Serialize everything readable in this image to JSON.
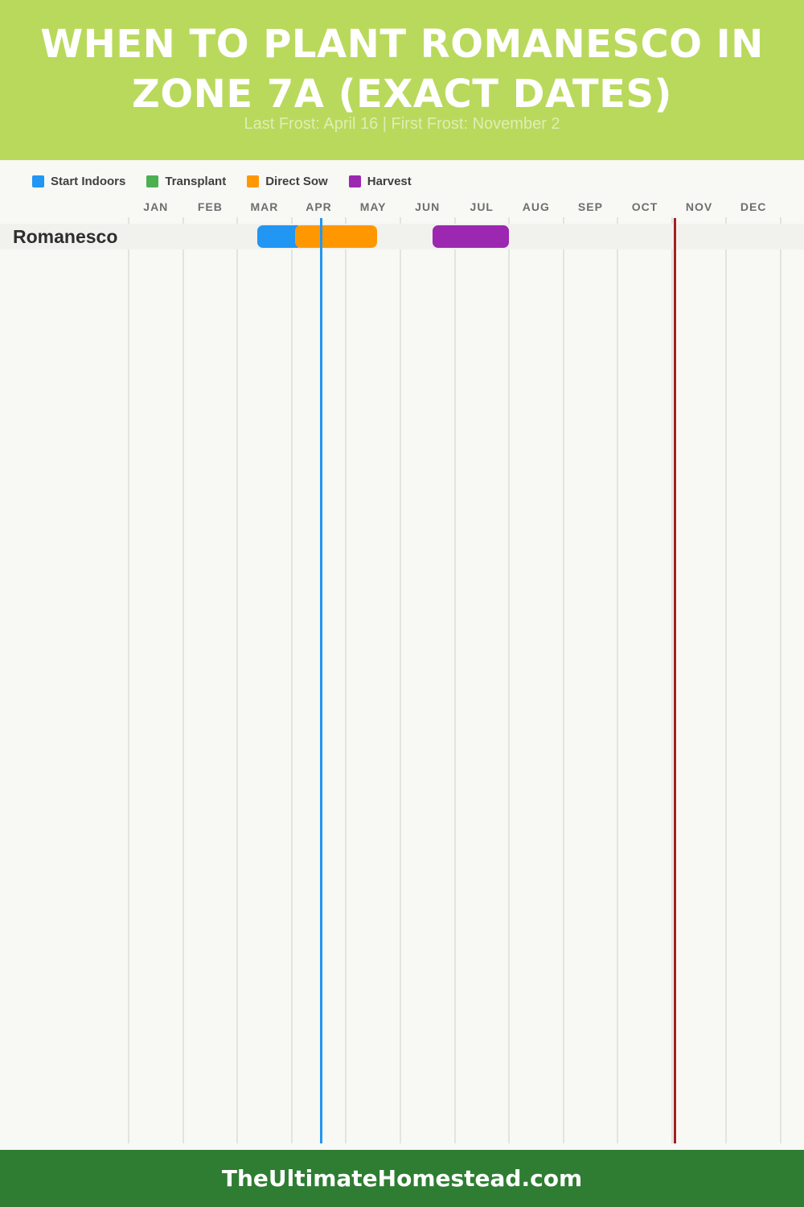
{
  "header": {
    "title_line1": "WHEN TO PLANT ROMANESCO IN",
    "title_line2": "ZONE 7A (EXACT DATES)",
    "subtitle": "Last Frost: April 16 | First Frost: November 2",
    "bg_color": "#b9d95c"
  },
  "legend": {
    "items": [
      {
        "label": "Start Indoors",
        "color": "#2196f3"
      },
      {
        "label": "Transplant",
        "color": "#4caf50"
      },
      {
        "label": "Direct Sow",
        "color": "#ff9800"
      },
      {
        "label": "Harvest",
        "color": "#9c27b0"
      }
    ]
  },
  "chart_data": {
    "type": "bar",
    "subtype": "gantt_planting_calendar",
    "title": "When to Plant Romanesco in Zone 7a (Exact Dates)",
    "last_frost": "April 16",
    "first_frost": "November 2",
    "x_axis": {
      "unit": "months",
      "categories": [
        "JAN",
        "FEB",
        "MAR",
        "APR",
        "MAY",
        "JUN",
        "JUL",
        "AUG",
        "SEP",
        "OCT",
        "NOV",
        "DEC"
      ],
      "range": [
        "Jan 1",
        "Dec 31"
      ],
      "grid": true
    },
    "rows": [
      {
        "label": "Romanesco",
        "spans": [
          {
            "series": "Start Indoors",
            "start": "Mar 12",
            "end": "Apr 2",
            "color": "#2196f3",
            "left_pct": 19.73,
            "width_pct": 6.29,
            "join_right": true
          },
          {
            "series": "Direct Sow",
            "start": "Apr 2",
            "end": "May 19",
            "color": "#ff9800",
            "left_pct": 25.52,
            "width_pct": 12.58
          },
          {
            "series": "Harvest",
            "start": "Jun 19",
            "end": "Jul 31",
            "color": "#9c27b0",
            "left_pct": 46.61,
            "width_pct": 11.71
          }
        ]
      }
    ],
    "markers": [
      {
        "name": "Last Frost",
        "date": "April 16",
        "color": "#2196f3",
        "left_pct": 29.47
      },
      {
        "name": "First Frost",
        "date": "November 2",
        "color": "#a32020",
        "left_pct": 83.76
      }
    ],
    "legend_position": "top-left"
  },
  "footer": {
    "site": "TheUltimateHomestead.com",
    "bg_color": "#2e7d32"
  }
}
